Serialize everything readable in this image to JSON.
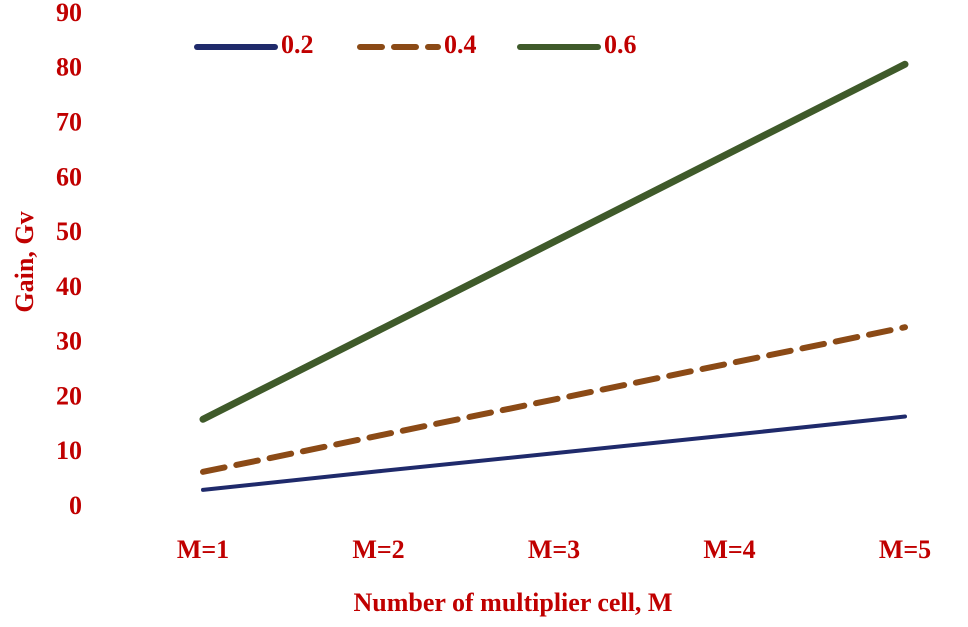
{
  "chart_data": {
    "type": "line",
    "x_label": "Number of multiplier cell, M",
    "y_label": "Gain, Gv",
    "categories": [
      "M=1",
      "M=2",
      "M=3",
      "M=4",
      "M=5"
    ],
    "series": [
      {
        "name": "0.2",
        "color": "#1f2a6b",
        "dash": "solid",
        "values": [
          3.3,
          6.7,
          10,
          13.3,
          16.7
        ]
      },
      {
        "name": "0.4",
        "color": "#8b4a16",
        "dash": "dashed",
        "values": [
          6.6,
          13.2,
          19.8,
          26.4,
          33
        ]
      },
      {
        "name": "0.6",
        "color": "#3f5a2a",
        "dash": "solid",
        "values": [
          16.2,
          32.4,
          48.6,
          64.8,
          81
        ]
      }
    ],
    "ylim": [
      0,
      90
    ],
    "yticks": [
      0,
      10,
      20,
      30,
      40,
      50,
      60,
      70,
      80,
      90
    ],
    "grid": false,
    "legend": "top"
  }
}
